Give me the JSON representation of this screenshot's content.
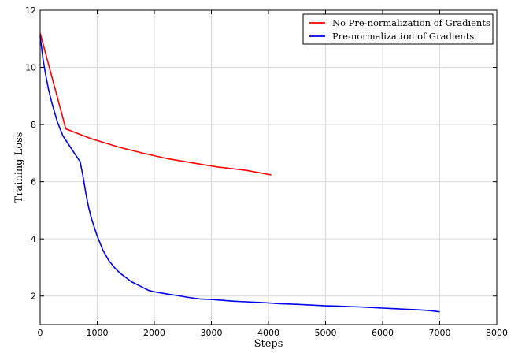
{
  "chart_data": {
    "type": "line",
    "title": "",
    "xlabel": "Steps",
    "ylabel": "Training Loss",
    "xlim": [
      0,
      8000
    ],
    "ylim": [
      1,
      12
    ],
    "xticks": [
      0,
      1000,
      2000,
      3000,
      4000,
      5000,
      6000,
      7000,
      8000
    ],
    "yticks": [
      2,
      4,
      6,
      8,
      10,
      12
    ],
    "xtick_labels": [
      "0",
      "1000",
      "2000",
      "3000",
      "4000",
      "5000",
      "6000",
      "7000",
      "8000"
    ],
    "ytick_labels": [
      "2",
      "4",
      "6",
      "8",
      "10",
      "12"
    ],
    "grid": true,
    "legend_position": "top-right",
    "series": [
      {
        "name": "No Pre-normalization of Gradients",
        "color": "#ff0000",
        "x": [
          0,
          450,
          900,
          1400,
          1800,
          2250,
          2700,
          3100,
          3600,
          4050
        ],
        "y": [
          11.2,
          7.85,
          7.5,
          7.2,
          7.0,
          6.8,
          6.65,
          6.52,
          6.4,
          6.24
        ]
      },
      {
        "name": "Pre-normalization of Gradients",
        "color": "#0000ee",
        "x": [
          0,
          50,
          100,
          150,
          200,
          300,
          400,
          500,
          600,
          700,
          750,
          800,
          850,
          900,
          1000,
          1100,
          1200,
          1300,
          1400,
          1500,
          1600,
          1700,
          1800,
          1900,
          2000,
          2200,
          2400,
          2600,
          2800,
          3000,
          3200,
          3400,
          3600,
          3800,
          4000,
          4200,
          4400,
          4600,
          4800,
          5000,
          5200,
          5400,
          5600,
          5800,
          6000,
          6200,
          6400,
          6600,
          6800,
          7000
        ],
        "y": [
          11.1,
          10.3,
          9.7,
          9.2,
          8.8,
          8.1,
          7.6,
          7.3,
          7.0,
          6.7,
          6.2,
          5.6,
          5.1,
          4.7,
          4.1,
          3.6,
          3.25,
          3.0,
          2.8,
          2.65,
          2.5,
          2.4,
          2.3,
          2.2,
          2.15,
          2.08,
          2.02,
          1.95,
          1.9,
          1.88,
          1.85,
          1.82,
          1.8,
          1.78,
          1.76,
          1.73,
          1.72,
          1.7,
          1.68,
          1.66,
          1.65,
          1.63,
          1.62,
          1.6,
          1.58,
          1.56,
          1.54,
          1.52,
          1.5,
          1.45
        ]
      }
    ]
  }
}
